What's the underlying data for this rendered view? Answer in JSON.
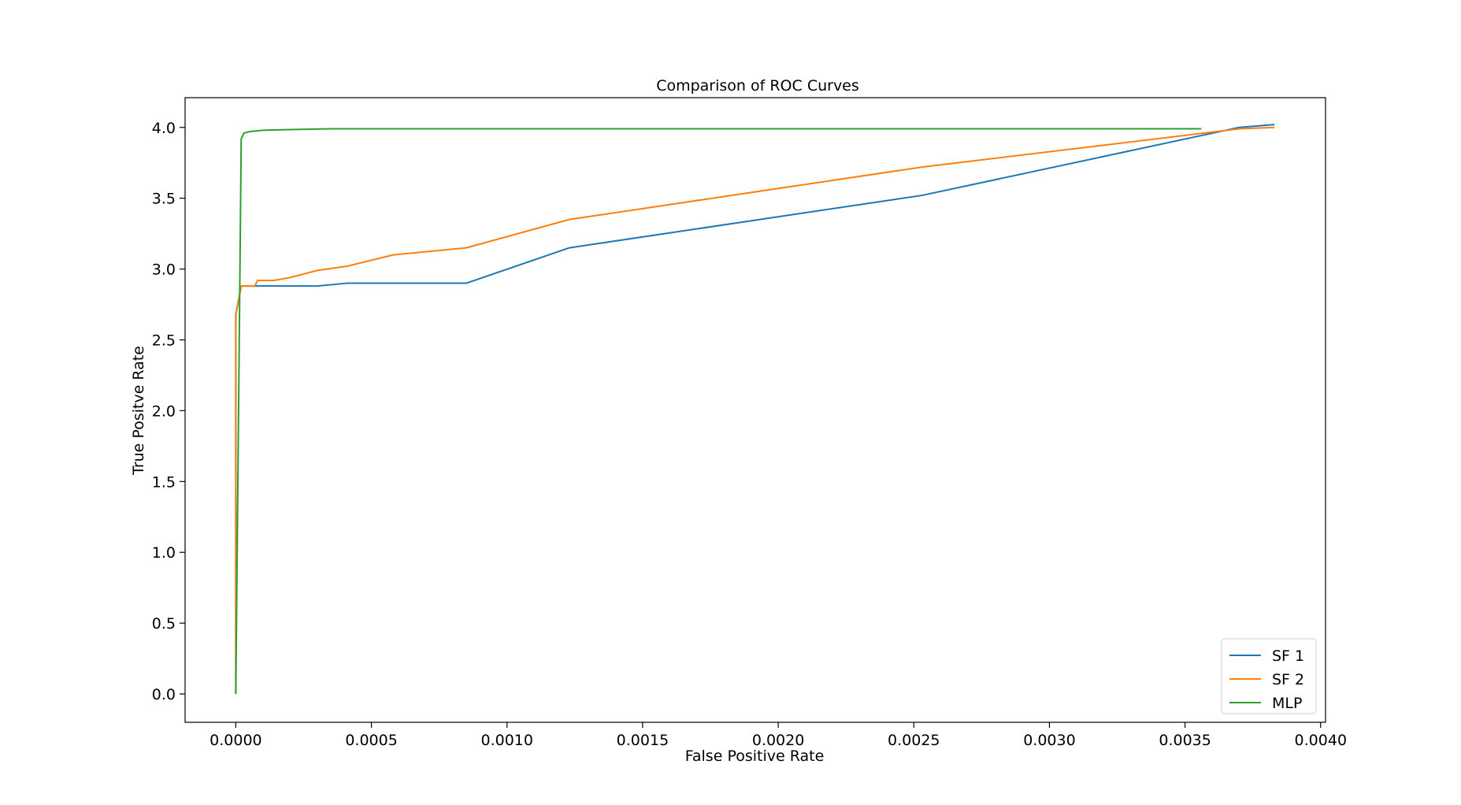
{
  "chart_data": {
    "type": "line",
    "title": "Comparison of ROC Curves",
    "xlabel": "False Positive Rate",
    "ylabel": "True Positve Rate",
    "xlim": [
      -0.000187,
      0.004018
    ],
    "ylim": [
      -0.2,
      4.21
    ],
    "xticks": [
      {
        "value": 0.0,
        "label": "0.0000"
      },
      {
        "value": 0.0005,
        "label": "0.0005"
      },
      {
        "value": 0.001,
        "label": "0.0010"
      },
      {
        "value": 0.0015,
        "label": "0.0015"
      },
      {
        "value": 0.002,
        "label": "0.0020"
      },
      {
        "value": 0.0025,
        "label": "0.0025"
      },
      {
        "value": 0.003,
        "label": "0.0030"
      },
      {
        "value": 0.0035,
        "label": "0.0035"
      },
      {
        "value": 0.004,
        "label": "0.0040"
      }
    ],
    "yticks": [
      {
        "value": 0.0,
        "label": "0.0"
      },
      {
        "value": 0.5,
        "label": "0.5"
      },
      {
        "value": 1.0,
        "label": "1.0"
      },
      {
        "value": 1.5,
        "label": "1.5"
      },
      {
        "value": 2.0,
        "label": "2.0"
      },
      {
        "value": 2.5,
        "label": "2.5"
      },
      {
        "value": 3.0,
        "label": "3.0"
      },
      {
        "value": 3.5,
        "label": "3.5"
      },
      {
        "value": 4.0,
        "label": "4.0"
      }
    ],
    "grid": false,
    "legend_position": "lower-right",
    "series": [
      {
        "name": "SF 1",
        "color": "#1f77b4",
        "x": [
          0.0,
          0.0,
          2e-05,
          0.0003,
          0.00041,
          0.00085,
          0.00123,
          0.00253,
          0.0037,
          0.00383
        ],
        "y": [
          0.0,
          2.68,
          2.88,
          2.88,
          2.9,
          2.9,
          3.15,
          3.52,
          4.0,
          4.02
        ]
      },
      {
        "name": "SF 2",
        "color": "#ff7f0e",
        "x": [
          0.0,
          0.0,
          2e-05,
          7e-05,
          8e-05,
          0.00014,
          0.0002,
          0.0003,
          0.00041,
          0.00058,
          0.00085,
          0.00123,
          0.00253,
          0.0037,
          0.00383
        ],
        "y": [
          0.0,
          2.68,
          2.88,
          2.88,
          2.92,
          2.92,
          2.94,
          2.99,
          3.02,
          3.1,
          3.15,
          3.35,
          3.72,
          3.99,
          4.0
        ]
      },
      {
        "name": "MLP",
        "color": "#2ca02c",
        "x": [
          0.0,
          2e-05,
          3e-05,
          5e-05,
          0.0001,
          0.0002,
          0.00035,
          0.001,
          0.002,
          0.003,
          0.00356
        ],
        "y": [
          0.0,
          3.92,
          3.96,
          3.97,
          3.98,
          3.985,
          3.99,
          3.99,
          3.99,
          3.99,
          3.99
        ]
      }
    ]
  }
}
